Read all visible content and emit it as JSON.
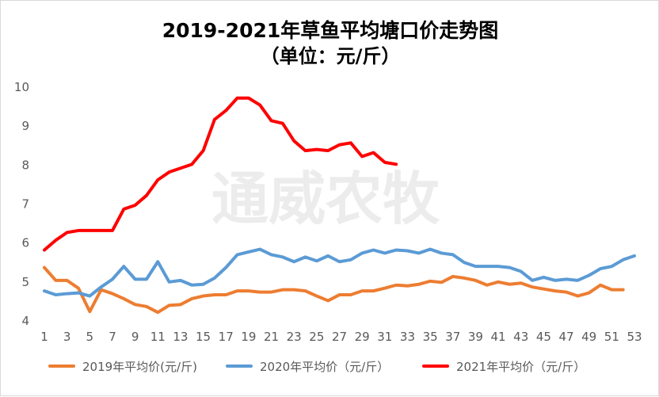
{
  "chart_data": {
    "type": "line",
    "title": "2019-2021年草鱼平均塘口价走势图",
    "subtitle": "（单位：元/斤）",
    "watermark": "通威农牧",
    "ylim": [
      4,
      10
    ],
    "y_ticks": [
      "4",
      "5",
      "6",
      "7",
      "8",
      "9",
      "10"
    ],
    "x_range": [
      1,
      53
    ],
    "x_ticks": [
      "1",
      "3",
      "5",
      "7",
      "9",
      "11",
      "13",
      "15",
      "17",
      "19",
      "21",
      "23",
      "25",
      "27",
      "29",
      "31",
      "33",
      "35",
      "37",
      "39",
      "41",
      "43",
      "45",
      "47",
      "49",
      "51",
      "53"
    ],
    "grid": false,
    "legend_position": "bottom",
    "series": [
      {
        "name": "2019年平均价(元/斤)",
        "color": "#ed7d31",
        "x": [
          1,
          2,
          3,
          4,
          5,
          6,
          7,
          8,
          9,
          10,
          11,
          12,
          13,
          14,
          15,
          16,
          17,
          18,
          19,
          20,
          21,
          22,
          23,
          24,
          25,
          26,
          27,
          28,
          29,
          30,
          31,
          32,
          33,
          34,
          35,
          36,
          37,
          38,
          39,
          40,
          41,
          42,
          43,
          44,
          45,
          46,
          47,
          48,
          49,
          50,
          51,
          52
        ],
        "values": [
          5.35,
          5.02,
          5.02,
          4.82,
          4.22,
          4.78,
          4.68,
          4.55,
          4.4,
          4.35,
          4.2,
          4.38,
          4.4,
          4.55,
          4.62,
          4.65,
          4.65,
          4.75,
          4.75,
          4.72,
          4.72,
          4.78,
          4.78,
          4.75,
          4.62,
          4.5,
          4.65,
          4.65,
          4.75,
          4.75,
          4.82,
          4.9,
          4.88,
          4.92,
          5.0,
          4.97,
          5.12,
          5.08,
          5.02,
          4.9,
          4.98,
          4.92,
          4.95,
          4.85,
          4.8,
          4.75,
          4.72,
          4.62,
          4.7,
          4.9,
          4.78,
          4.78
        ]
      },
      {
        "name": "2020年平均价（元/斤）",
        "color": "#5b9bd5",
        "x": [
          1,
          2,
          3,
          4,
          5,
          6,
          7,
          8,
          9,
          10,
          11,
          12,
          13,
          14,
          15,
          16,
          17,
          18,
          19,
          20,
          21,
          22,
          23,
          24,
          25,
          26,
          27,
          28,
          29,
          30,
          31,
          32,
          33,
          34,
          35,
          36,
          37,
          38,
          39,
          40,
          41,
          42,
          43,
          44,
          45,
          46,
          47,
          48,
          49,
          50,
          51,
          52,
          53
        ],
        "values": [
          4.75,
          4.65,
          4.68,
          4.7,
          4.62,
          4.85,
          5.05,
          5.38,
          5.05,
          5.05,
          5.5,
          4.98,
          5.02,
          4.9,
          4.92,
          5.08,
          5.35,
          5.68,
          5.75,
          5.82,
          5.68,
          5.62,
          5.5,
          5.62,
          5.52,
          5.65,
          5.5,
          5.55,
          5.72,
          5.8,
          5.72,
          5.8,
          5.78,
          5.72,
          5.82,
          5.72,
          5.68,
          5.48,
          5.38,
          5.38,
          5.38,
          5.35,
          5.25,
          5.02,
          5.1,
          5.02,
          5.05,
          5.02,
          5.15,
          5.32,
          5.38,
          5.55,
          5.65
        ]
      },
      {
        "name": "2021年平均价（元/斤）",
        "color": "#ff0000",
        "x": [
          1,
          2,
          3,
          4,
          5,
          6,
          7,
          8,
          9,
          10,
          11,
          12,
          13,
          14,
          15,
          16,
          17,
          18,
          19,
          20,
          21,
          22,
          23,
          24,
          25,
          26,
          27,
          28,
          29,
          30,
          31,
          32
        ],
        "values": [
          5.8,
          6.05,
          6.25,
          6.3,
          6.3,
          6.3,
          6.3,
          6.85,
          6.95,
          7.2,
          7.6,
          7.8,
          7.9,
          8.0,
          8.35,
          9.15,
          9.38,
          9.7,
          9.7,
          9.52,
          9.12,
          9.05,
          8.6,
          8.35,
          8.38,
          8.35,
          8.5,
          8.55,
          8.2,
          8.3,
          8.05,
          8.0
        ]
      }
    ]
  }
}
